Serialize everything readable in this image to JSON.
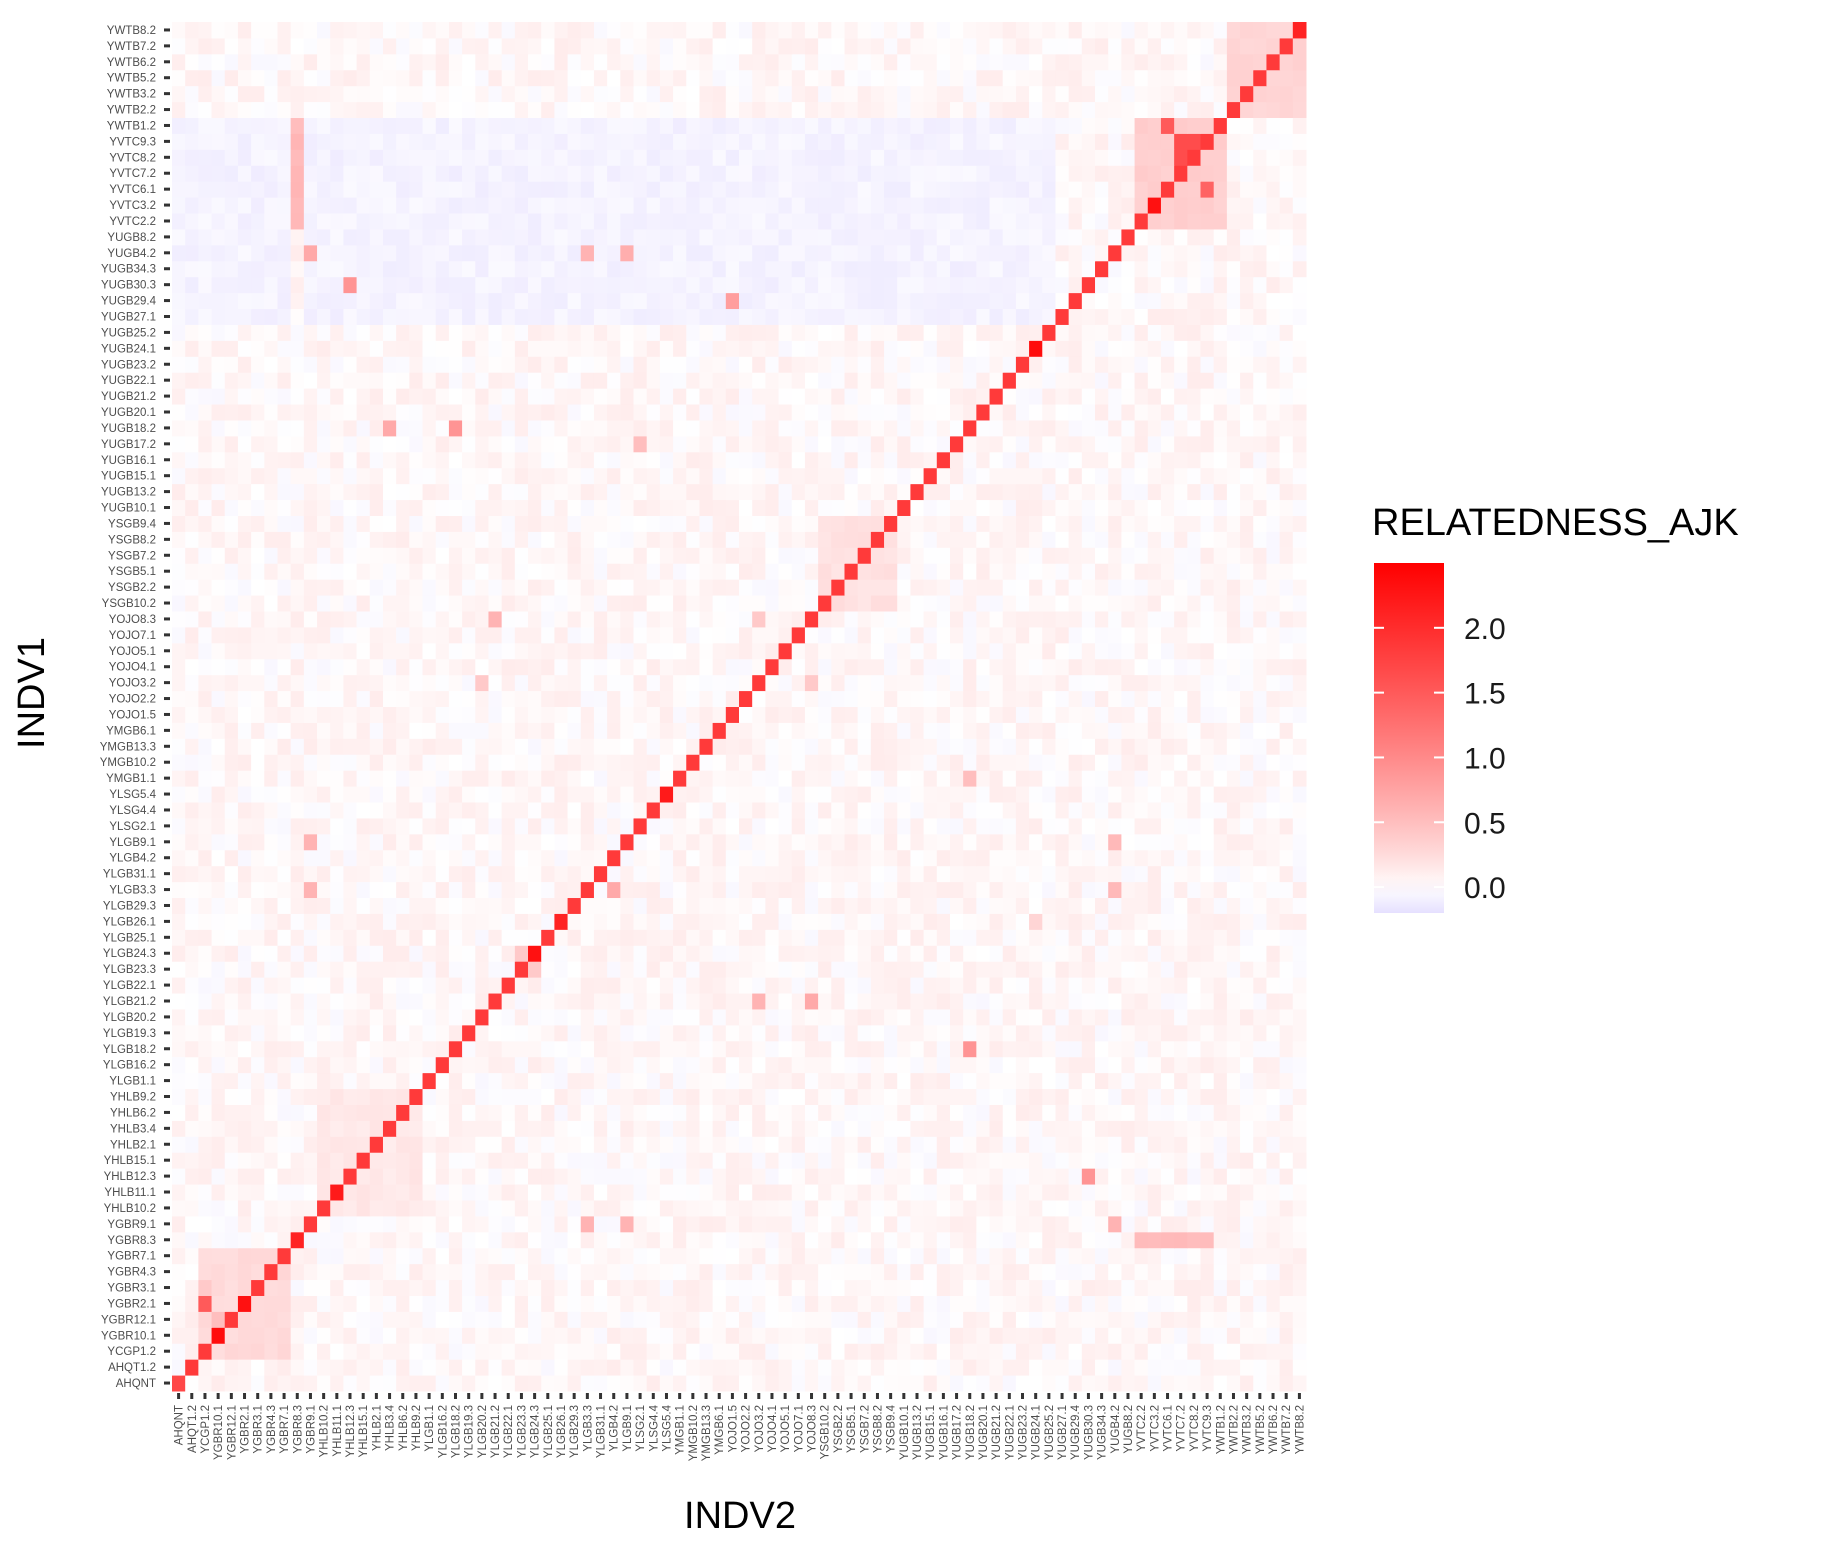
{
  "chart_data": {
    "type": "heatmap",
    "xlabel": "INDV2",
    "ylabel": "INDV1",
    "legend": {
      "title": "RELATEDNESS_AJK",
      "ticks": [
        "0.0",
        "0.5",
        "1.0",
        "1.5",
        "2.0"
      ],
      "range": [
        -0.2,
        2.5
      ],
      "position": "right",
      "low_color": "#e6e0ff",
      "mid_color": "#ffffff",
      "high_color": "#ff0000"
    },
    "individuals": [
      "AHQNT",
      "AHQT1.2",
      "YCGP1.2",
      "YGBR10.1",
      "YGBR12.1",
      "YGBR2.1",
      "YGBR3.1",
      "YGBR4.3",
      "YGBR7.1",
      "YGBR8.3",
      "YGBR9.1",
      "YHLB10.2",
      "YHLB11.1",
      "YHLB12.3",
      "YHLB15.1",
      "YHLB2.1",
      "YHLB3.4",
      "YHLB6.2",
      "YHLB9.2",
      "YLGB1.1",
      "YLGB16.2",
      "YLGB18.2",
      "YLGB19.3",
      "YLGB20.2",
      "YLGB21.2",
      "YLGB22.1",
      "YLGB23.3",
      "YLGB24.3",
      "YLGB25.1",
      "YLGB26.1",
      "YLGB29.3",
      "YLGB3.3",
      "YLGB31.1",
      "YLGB4.2",
      "YLGB9.1",
      "YLSG2.1",
      "YLSG4.4",
      "YLSG5.4",
      "YMGB1.1",
      "YMGB10.2",
      "YMGB13.3",
      "YMGB6.1",
      "YOJO1.5",
      "YOJO2.2",
      "YOJO3.2",
      "YOJO4.1",
      "YOJO5.1",
      "YOJO7.1",
      "YOJO8.3",
      "YSGB10.2",
      "YSGB2.2",
      "YSGB5.1",
      "YSGB7.2",
      "YSGB8.2",
      "YSGB9.4",
      "YUGB10.1",
      "YUGB13.2",
      "YUGB15.1",
      "YUGB16.1",
      "YUGB17.2",
      "YUGB18.2",
      "YUGB20.1",
      "YUGB21.2",
      "YUGB22.1",
      "YUGB23.2",
      "YUGB24.1",
      "YUGB25.2",
      "YUGB27.1",
      "YUGB29.4",
      "YUGB30.3",
      "YUGB34.3",
      "YUGB4.2",
      "YUGB8.2",
      "YVTC2.2",
      "YVTC3.2",
      "YVTC6.1",
      "YVTC7.2",
      "YVTC8.2",
      "YVTC9.3",
      "YWTB1.2",
      "YWTB2.2",
      "YWTB3.2",
      "YWTB5.2",
      "YWTB6.2",
      "YWTB7.2",
      "YWTB8.2"
    ],
    "diagonal": {
      "default": 1.85,
      "overrides": {
        "AHQNT": 1.7,
        "YGBR10.1": 2.35,
        "YGBR2.1": 2.3,
        "YLGB24.3": 2.3,
        "YLSG5.4": 2.2,
        "YUGB24.1": 2.35,
        "YVTC3.2": 2.3,
        "YWTB8.2": 2.1,
        "YHLB11.1": 2.2,
        "YGBR8.3": 2.1,
        "YLGB26.1": 2.1
      }
    },
    "blocks": [
      {
        "rows": [
          "YVTC2.2",
          "YVTC3.2",
          "YVTC6.1",
          "YVTC7.2",
          "YVTC8.2",
          "YVTC9.3",
          "YWTB1.2"
        ],
        "cols": [
          "YVTC2.2",
          "YVTC3.2",
          "YVTC6.1",
          "YVTC7.2",
          "YVTC8.2",
          "YVTC9.3",
          "YWTB1.2"
        ],
        "value": 0.35
      },
      {
        "rows": [
          "YWTB2.2",
          "YWTB3.2",
          "YWTB5.2",
          "YWTB6.2",
          "YWTB7.2",
          "YWTB8.2"
        ],
        "cols": [
          "YWTB2.2",
          "YWTB3.2",
          "YWTB5.2",
          "YWTB6.2",
          "YWTB7.2",
          "YWTB8.2"
        ],
        "value": 0.3
      },
      {
        "rows": [
          "YSGB10.2",
          "YSGB2.2",
          "YSGB5.1",
          "YSGB7.2",
          "YSGB8.2",
          "YSGB9.4"
        ],
        "cols": [
          "YSGB10.2",
          "YSGB2.2",
          "YSGB5.1",
          "YSGB7.2",
          "YSGB8.2",
          "YSGB9.4"
        ],
        "value": 0.2
      },
      {
        "rows": [
          "YHLB10.2",
          "YHLB11.1",
          "YHLB12.3",
          "YHLB15.1",
          "YHLB2.1",
          "YHLB3.4",
          "YHLB6.2",
          "YHLB9.2"
        ],
        "cols": [
          "YHLB10.2",
          "YHLB11.1",
          "YHLB12.3",
          "YHLB15.1",
          "YHLB2.1",
          "YHLB3.4",
          "YHLB6.2",
          "YHLB9.2"
        ],
        "value": 0.15
      },
      {
        "rows": [
          "YCGP1.2",
          "YGBR10.1",
          "YGBR12.1",
          "YGBR2.1",
          "YGBR3.1",
          "YGBR4.3",
          "YGBR7.1"
        ],
        "cols": [
          "YCGP1.2",
          "YGBR10.1",
          "YGBR12.1",
          "YGBR2.1",
          "YGBR3.1",
          "YGBR4.3",
          "YGBR7.1"
        ],
        "value": 0.25
      },
      {
        "rows": [
          "YGBR8.3"
        ],
        "cols": [
          "YVTC2.2",
          "YVTC3.2",
          "YVTC6.1",
          "YVTC7.2",
          "YVTC8.2",
          "YVTC9.3"
        ],
        "value": 0.55
      },
      {
        "rows": [
          "YVTC2.2",
          "YVTC3.2",
          "YVTC6.1",
          "YVTC7.2",
          "YVTC8.2",
          "YVTC9.3",
          "YWTB1.2"
        ],
        "cols": [
          "YGBR8.3"
        ],
        "value": 0.55
      },
      {
        "rows": [
          "YVTC2.2",
          "YVTC3.2",
          "YVTC6.1",
          "YVTC7.2",
          "YVTC8.2",
          "YVTC9.3",
          "YWTB1.2",
          "YUGB8.2",
          "YUGB4.2",
          "YUGB34.3",
          "YUGB30.3",
          "YUGB29.4",
          "YUGB27.1"
        ],
        "cols": [
          "AHQNT",
          "AHQT1.2",
          "YCGP1.2",
          "YGBR10.1",
          "YGBR12.1",
          "YGBR2.1",
          "YGBR3.1",
          "YGBR4.3",
          "YGBR7.1",
          "YGBR9.1",
          "YHLB10.2",
          "YHLB11.1",
          "YHLB12.3",
          "YHLB15.1",
          "YHLB2.1",
          "YHLB3.4",
          "YHLB6.2",
          "YHLB9.2",
          "YLGB1.1",
          "YLGB16.2",
          "YLGB18.2",
          "YLGB19.3",
          "YLGB20.2",
          "YLGB21.2",
          "YLGB22.1",
          "YLGB23.3",
          "YLGB24.3",
          "YLGB25.1",
          "YLGB26.1",
          "YLGB29.3",
          "YLGB3.3",
          "YLGB31.1",
          "YLGB4.2",
          "YLGB9.1",
          "YLSG2.1",
          "YLSG4.4",
          "YLSG5.4",
          "YMGB1.1",
          "YMGB10.2",
          "YMGB13.3",
          "YMGB6.1",
          "YOJO1.5",
          "YOJO2.2",
          "YOJO3.2",
          "YOJO4.1",
          "YOJO5.1",
          "YOJO7.1",
          "YOJO8.3",
          "YSGB10.2",
          "YSGB2.2",
          "YSGB5.1",
          "YSGB7.2",
          "YSGB8.2",
          "YSGB9.4",
          "YUGB10.1",
          "YUGB13.2",
          "YUGB15.1",
          "YUGB16.1",
          "YUGB17.2",
          "YUGB18.2",
          "YUGB20.1",
          "YUGB21.2",
          "YUGB22.1",
          "YUGB23.2",
          "YUGB24.1",
          "YUGB25.2"
        ],
        "value": -0.08
      }
    ],
    "pairs": [
      {
        "a": "YVTC9.3",
        "b": "YVTC8.2",
        "value": 1.65
      },
      {
        "a": "YVTC9.3",
        "b": "YVTC7.2",
        "value": 1.65
      },
      {
        "a": "YVTC8.2",
        "b": "YVTC7.2",
        "value": 1.65
      },
      {
        "a": "YWTB1.2",
        "b": "YVTC6.1",
        "value": 1.5
      },
      {
        "a": "YVTC6.1",
        "b": "YVTC9.3",
        "value": 1.4
      },
      {
        "a": "YGBR2.1",
        "b": "YCGP1.2",
        "value": 1.5
      },
      {
        "a": "YGBR12.1",
        "b": "YGBR10.1",
        "value": 0.5
      },
      {
        "a": "YUGB29.4",
        "b": "YOJO1.5",
        "value": 0.8
      },
      {
        "a": "YUGB30.3",
        "b": "YHLB12.3",
        "value": 0.9
      },
      {
        "a": "YHLB12.3",
        "b": "YUGB30.3",
        "value": 0.9
      },
      {
        "a": "YUGB18.2",
        "b": "YLGB18.2",
        "value": 0.9
      },
      {
        "a": "YLGB18.2",
        "b": "YUGB18.2",
        "value": 0.9
      },
      {
        "a": "YUGB4.2",
        "b": "YGBR9.1",
        "value": 0.7
      },
      {
        "a": "YUGB4.2",
        "b": "YLGB3.3",
        "value": 0.6
      },
      {
        "a": "YUGB4.2",
        "b": "YLGB9.1",
        "value": 0.65
      },
      {
        "a": "YGBR9.1",
        "b": "YLGB3.3",
        "value": 0.6
      },
      {
        "a": "YGBR9.1",
        "b": "YLGB9.1",
        "value": 0.6
      },
      {
        "a": "YGBR9.1",
        "b": "YUGB4.2",
        "value": 0.6
      },
      {
        "a": "YLGB9.1",
        "b": "YGBR9.1",
        "value": 0.6
      },
      {
        "a": "YLGB3.3",
        "b": "YGBR9.1",
        "value": 0.6
      },
      {
        "a": "YLGB9.1",
        "b": "YUGB4.2",
        "value": 0.55
      },
      {
        "a": "YLGB3.3",
        "b": "YUGB4.2",
        "value": 0.55
      },
      {
        "a": "YLGB3.3",
        "b": "YLGB4.2",
        "value": 0.7
      },
      {
        "a": "YLGB21.2",
        "b": "YOJO3.2",
        "value": 0.6
      },
      {
        "a": "YLGB21.2",
        "b": "YOJO8.3",
        "value": 0.7
      },
      {
        "a": "YOJO8.3",
        "b": "YLGB21.2",
        "value": 0.6
      },
      {
        "a": "YOJO3.2",
        "b": "YLGB20.2",
        "value": 0.4
      },
      {
        "a": "YOJO3.2",
        "b": "YOJO8.3",
        "value": 0.4
      },
      {
        "a": "YOJO8.3",
        "b": "YOJO3.2",
        "value": 0.4
      },
      {
        "a": "YMGB1.1",
        "b": "YUGB18.2",
        "value": 0.5
      },
      {
        "a": "YUGB17.2",
        "b": "YLSG2.1",
        "value": 0.5
      },
      {
        "a": "YUGB18.2",
        "b": "YHLB3.4",
        "value": 0.7
      },
      {
        "a": "YGBR3.1",
        "b": "YCGP1.2",
        "value": 0.4
      },
      {
        "a": "YLGB24.3",
        "b": "YLGB23.3",
        "value": 0.4
      },
      {
        "a": "YLGB23.3",
        "b": "YLGB24.3",
        "value": 0.4
      },
      {
        "a": "YLGB26.1",
        "b": "YUGB24.1",
        "value": 0.3
      }
    ]
  }
}
